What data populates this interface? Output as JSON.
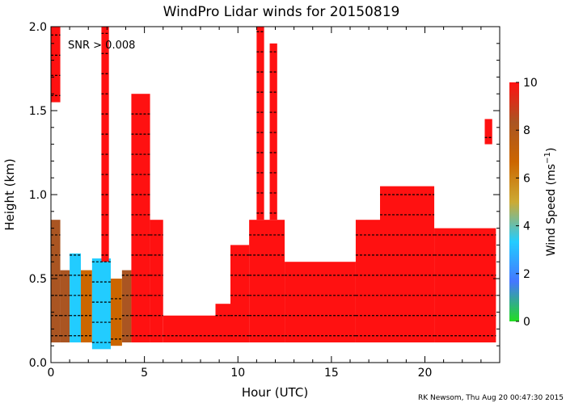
{
  "chart_data": {
    "type": "heatmap",
    "title": "WindPro Lidar winds for 20150819",
    "xlabel": "Hour (UTC)",
    "ylabel": "Height (km)",
    "xlim": [
      0,
      24
    ],
    "ylim": [
      0,
      2
    ],
    "x_ticks": [
      0,
      5,
      10,
      15,
      20
    ],
    "x_tick_labels": [
      "0",
      "5",
      "10",
      "15",
      "20"
    ],
    "y_ticks": [
      0,
      0.5,
      1.0,
      1.5,
      2.0
    ],
    "y_tick_labels": [
      "0.0",
      "0.5",
      "1.0",
      "1.5",
      "2.0"
    ],
    "annotation": "SNR > 0.008",
    "colorbar": {
      "label": "Wind Speed (ms",
      "label_sup": "−1",
      "label_close": ")",
      "range": [
        0,
        10
      ],
      "ticks": [
        0,
        2,
        4,
        6,
        8,
        10
      ],
      "tick_labels": [
        "0",
        "2",
        "4",
        "6",
        "8",
        "10"
      ],
      "colors": [
        "#22dd22",
        "#4477ff",
        "#22ccff",
        "#ccaa33",
        "#cc6600",
        "#aa5522",
        "#ff1111"
      ]
    },
    "footer": "RK Newsom, Thu Aug 20 00:47:30 2015",
    "regions": [
      {
        "t0": 0.0,
        "t1": 0.5,
        "h0": 0.12,
        "h1": 0.85,
        "speed": 9
      },
      {
        "t0": 0.0,
        "t1": 0.5,
        "h0": 1.55,
        "h1": 2.0,
        "speed": 10
      },
      {
        "t0": 0.5,
        "t1": 1.0,
        "h0": 0.12,
        "h1": 0.55,
        "speed": 9
      },
      {
        "t0": 1.0,
        "t1": 1.6,
        "h0": 0.12,
        "h1": 0.65,
        "speed": 4
      },
      {
        "t0": 1.6,
        "t1": 2.2,
        "h0": 0.12,
        "h1": 0.55,
        "speed": 7
      },
      {
        "t0": 2.2,
        "t1": 3.2,
        "h0": 0.08,
        "h1": 0.62,
        "speed": 4
      },
      {
        "t0": 2.7,
        "t1": 3.1,
        "h0": 0.6,
        "h1": 2.0,
        "speed": 10
      },
      {
        "t0": 3.2,
        "t1": 3.8,
        "h0": 0.1,
        "h1": 0.5,
        "speed": 6
      },
      {
        "t0": 3.8,
        "t1": 4.3,
        "h0": 0.12,
        "h1": 0.55,
        "speed": 9
      },
      {
        "t0": 4.3,
        "t1": 5.3,
        "h0": 0.12,
        "h1": 1.6,
        "speed": 10
      },
      {
        "t0": 5.3,
        "t1": 6.0,
        "h0": 0.12,
        "h1": 0.85,
        "speed": 10
      },
      {
        "t0": 6.0,
        "t1": 8.8,
        "h0": 0.12,
        "h1": 0.28,
        "speed": 10
      },
      {
        "t0": 8.8,
        "t1": 9.6,
        "h0": 0.12,
        "h1": 0.35,
        "speed": 10
      },
      {
        "t0": 9.6,
        "t1": 10.6,
        "h0": 0.12,
        "h1": 0.7,
        "speed": 10
      },
      {
        "t0": 10.6,
        "t1": 12.5,
        "h0": 0.12,
        "h1": 0.85,
        "speed": 10
      },
      {
        "t0": 11.0,
        "t1": 11.4,
        "h0": 0.85,
        "h1": 2.0,
        "speed": 10
      },
      {
        "t0": 11.7,
        "t1": 12.1,
        "h0": 0.85,
        "h1": 1.9,
        "speed": 10
      },
      {
        "t0": 12.5,
        "t1": 16.3,
        "h0": 0.12,
        "h1": 0.6,
        "speed": 10
      },
      {
        "t0": 16.3,
        "t1": 17.6,
        "h0": 0.12,
        "h1": 0.85,
        "speed": 10
      },
      {
        "t0": 17.6,
        "t1": 20.5,
        "h0": 0.12,
        "h1": 1.05,
        "speed": 10
      },
      {
        "t0": 20.5,
        "t1": 23.8,
        "h0": 0.12,
        "h1": 0.8,
        "speed": 10
      },
      {
        "t0": 23.2,
        "t1": 23.6,
        "h0": 1.3,
        "h1": 1.45,
        "speed": 10
      }
    ]
  }
}
